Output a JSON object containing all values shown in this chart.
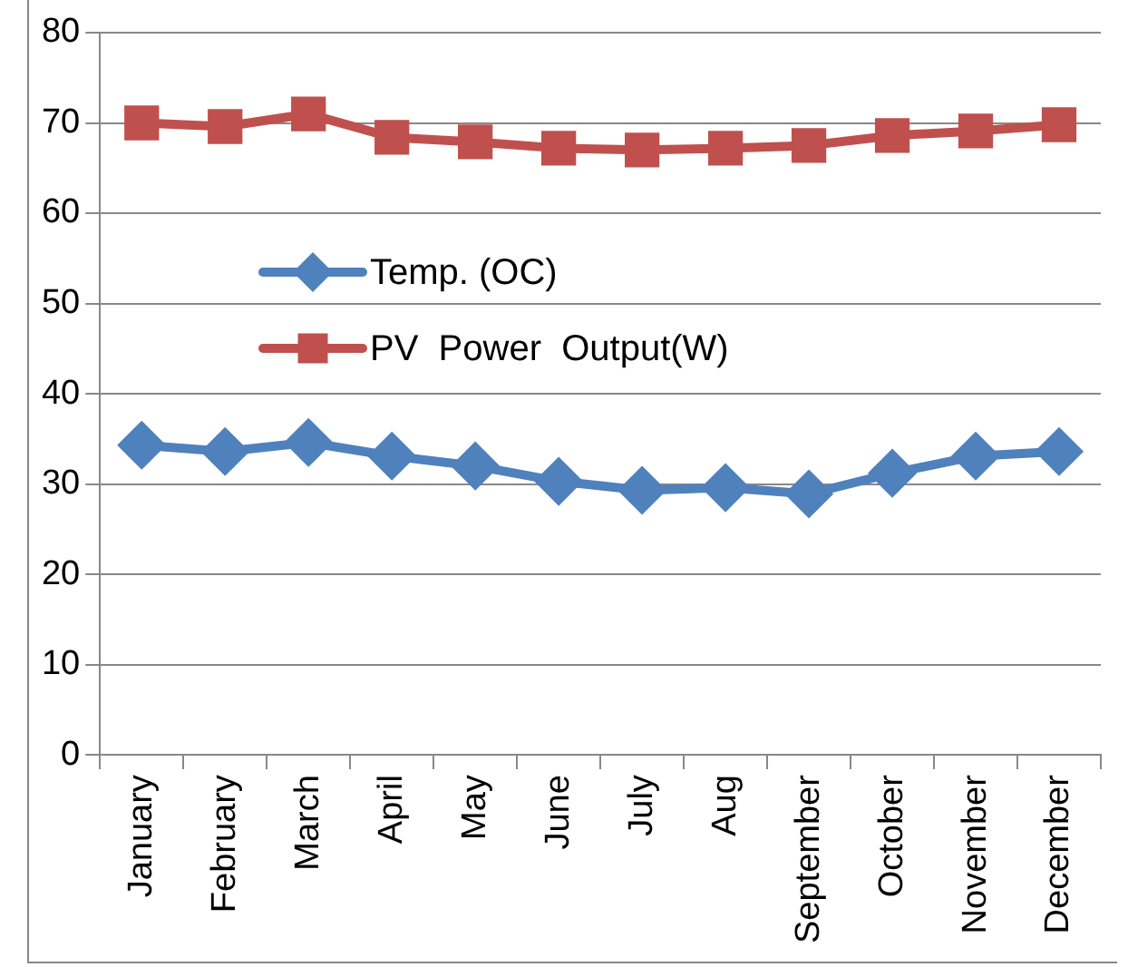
{
  "chart_data": {
    "type": "line",
    "categories": [
      "January",
      "February",
      "March",
      "April",
      "May",
      "June",
      "July",
      "Aug",
      "September",
      "October",
      "November",
      "December"
    ],
    "series": [
      {
        "name": "Temp. (OC)",
        "color": "#4f81bd",
        "marker": "diamond",
        "values": [
          34.3,
          33.6,
          34.6,
          33.1,
          32.0,
          30.3,
          29.3,
          29.6,
          28.9,
          31.2,
          33.1,
          33.6
        ]
      },
      {
        "name": "PV  Power  Output(W)",
        "color": "#c0504d",
        "marker": "square",
        "values": [
          70.0,
          69.6,
          71.0,
          68.4,
          67.9,
          67.2,
          67.0,
          67.2,
          67.5,
          68.6,
          69.1,
          69.8
        ]
      }
    ],
    "ylim": [
      0,
      80
    ],
    "yticks": [
      0,
      10,
      20,
      30,
      40,
      50,
      60,
      70,
      80
    ],
    "grid": "y",
    "legend": "left",
    "line_style": "solid"
  }
}
